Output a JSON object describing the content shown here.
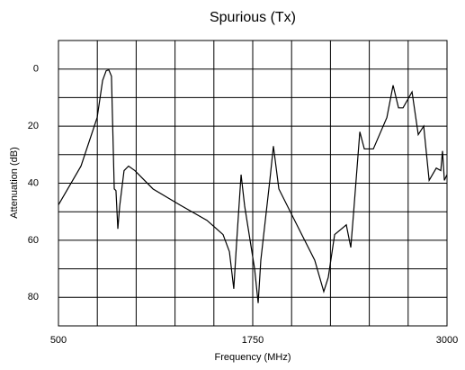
{
  "chart_data": {
    "type": "line",
    "title": "Spurious (Tx)",
    "xlabel": "Frequency (MHz)",
    "ylabel": "Attenuation (dB)",
    "x": [
      500,
      645,
      749,
      784,
      807,
      824,
      841,
      859,
      870,
      882,
      894,
      922,
      951,
      992,
      1108,
      1281,
      1455,
      1559,
      1600,
      1628,
      1646,
      1675,
      1698,
      1762,
      1785,
      1802,
      1860,
      1883,
      1918,
      2034,
      2149,
      2207,
      2236,
      2277,
      2352,
      2381,
      2398,
      2439,
      2468,
      2526,
      2613,
      2653,
      2688,
      2717,
      2775,
      2815,
      2850,
      2885,
      2931,
      2960,
      2971,
      2983,
      3000
    ],
    "values": [
      47.6,
      34,
      17,
      4,
      0.6,
      0.3,
      2.5,
      42,
      42.6,
      56,
      48,
      35.6,
      34,
      35.6,
      42,
      47.6,
      53,
      58,
      64,
      77,
      61,
      37,
      48,
      70,
      82,
      67,
      39,
      27,
      42,
      54.6,
      67,
      78,
      73,
      58,
      54.6,
      62.5,
      51,
      22,
      28,
      28,
      17,
      5.7,
      13.6,
      13.6,
      8,
      23,
      20,
      39,
      34.7,
      35.6,
      28.7,
      39,
      37
    ],
    "color": "#000000",
    "xlim": [
      500,
      3000
    ],
    "xticks": [
      500,
      1750,
      3000
    ],
    "xgrid": [
      750,
      1000,
      1250,
      1500,
      1750,
      2000,
      2250,
      2500,
      2750
    ],
    "ylim": [
      90,
      -10
    ],
    "yticks": [
      0,
      20,
      40,
      60,
      80
    ],
    "ygrid": [
      0,
      10,
      20,
      30,
      40,
      50,
      60,
      70,
      80
    ]
  }
}
